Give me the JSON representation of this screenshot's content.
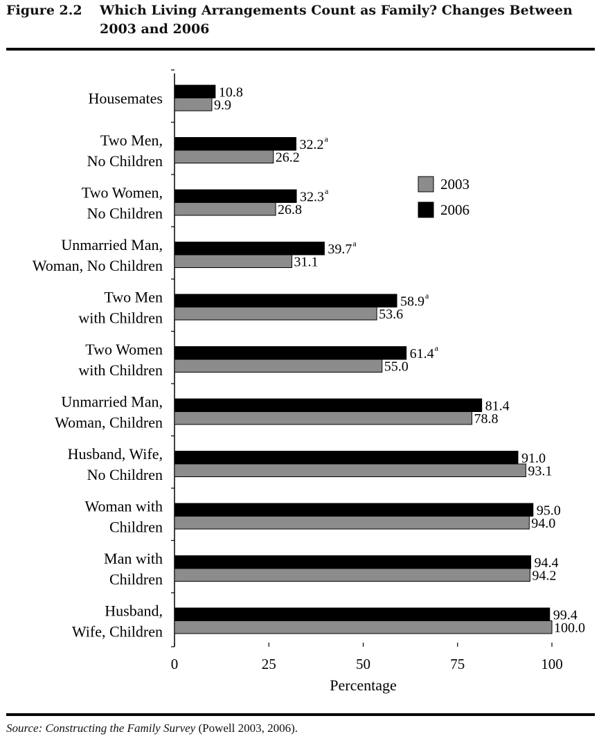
{
  "figure": {
    "number": "Figure 2.2",
    "title": "Which Living Arrangements Count as Family? Changes Between 2003 and 2006"
  },
  "source": {
    "label": "Source:",
    "publication": "Constructing the Family Survey",
    "citation": "(Powell 2003, 2006)."
  },
  "footnote": "",
  "chart_data": {
    "type": "bar",
    "orientation": "horizontal",
    "title": "",
    "xlabel": "Percentage",
    "ylabel": "",
    "xlim": [
      0,
      100
    ],
    "xticks": [
      0,
      25,
      50,
      75,
      100
    ],
    "legend_position": "right",
    "categories": [
      [
        "Housemates"
      ],
      [
        "Two Men,",
        "No Children"
      ],
      [
        "Two Women,",
        "No Children"
      ],
      [
        "Unmarried Man,",
        "Woman, No Children"
      ],
      [
        "Two Men",
        "with Children"
      ],
      [
        "Two Women",
        "with Children"
      ],
      [
        "Unmarried Man,",
        "Woman, Children"
      ],
      [
        "Husband, Wife,",
        "No Children"
      ],
      [
        "Woman with",
        "Children"
      ],
      [
        "Man with",
        "Children"
      ],
      [
        "Husband,",
        "Wife, Children"
      ]
    ],
    "series": [
      {
        "name": "2006",
        "color": "#000000",
        "values": [
          10.8,
          32.2,
          32.3,
          39.7,
          58.9,
          61.4,
          81.4,
          91.0,
          95.0,
          94.4,
          99.4
        ],
        "labels": [
          "10.8",
          "32.2",
          "32.3",
          "39.7",
          "58.9",
          "61.4",
          "81.4",
          "91.0",
          "95.0",
          "94.4",
          "99.4"
        ],
        "marks": [
          "",
          "a",
          "a",
          "a",
          "a",
          "a",
          "",
          "",
          "",
          "",
          ""
        ]
      },
      {
        "name": "2003",
        "color": "#8c8c8c",
        "values": [
          9.9,
          26.2,
          26.8,
          31.1,
          53.6,
          55.0,
          78.8,
          93.1,
          94.0,
          94.2,
          100.0
        ],
        "labels": [
          "9.9",
          "26.2",
          "26.8",
          "31.1",
          "53.6",
          "55.0",
          "78.8",
          "93.1",
          "94.0",
          "94.2",
          "100.0"
        ],
        "marks": [
          "",
          "",
          "",
          "",
          "",
          "",
          "",
          "",
          "",
          "",
          ""
        ]
      }
    ],
    "legend": [
      {
        "name": "2003",
        "color": "#8c8c8c"
      },
      {
        "name": "2006",
        "color": "#000000"
      }
    ]
  }
}
